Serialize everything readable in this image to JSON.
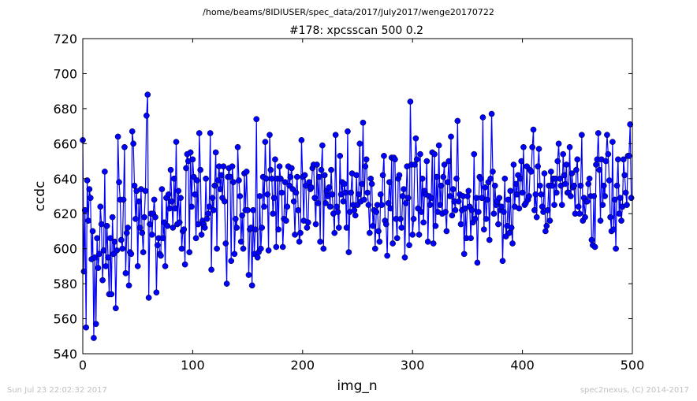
{
  "header": {
    "path": "/home/beams/8IDIUSER/spec_data/2017/July2017/wenge20170722",
    "scan_title": "#178: xpcsscan 500 0.2"
  },
  "footer": {
    "timestamp": "Sun Jul 23 22:02:32 2017",
    "credit": "spec2nexus, (C) 2014-2017"
  },
  "chart_data": {
    "type": "line",
    "title": "#178: xpcsscan 500 0.2",
    "xlabel": "img_n",
    "ylabel": "ccdc",
    "xlim": [
      0,
      500
    ],
    "ylim": [
      540,
      720
    ],
    "x_ticks": [
      0,
      100,
      200,
      300,
      400,
      500
    ],
    "y_ticks": [
      540,
      560,
      580,
      600,
      620,
      640,
      660,
      680,
      700,
      720
    ],
    "grid": false,
    "marker": "circle",
    "color": "#0000ff",
    "series": [
      {
        "x_start": 0,
        "x_step": 1,
        "values": [
          662,
          587,
          622,
          555,
          639,
          616,
          634,
          629,
          594,
          610,
          549,
          595,
          557,
          606,
          589,
          597,
          624,
          614,
          582,
          599,
          644,
          590,
          613,
          595,
          574,
          606,
          574,
          618,
          597,
          604,
          566,
          599,
          664,
          638,
          628,
          605,
          600,
          628,
          658,
          586,
          609,
          612,
          579,
          598,
          597,
          667,
          660,
          636,
          617,
          633,
          590,
          627,
          612,
          634,
          609,
          598,
          618,
          633,
          676,
          688,
          572,
          614,
          620,
          608,
          620,
          628,
          618,
          575,
          602,
          606,
          597,
          596,
          634,
          606,
          615,
          590,
          629,
          613,
          631,
          623,
          645,
          627,
          612,
          640,
          623,
          661,
          614,
          633,
          615,
          629,
          600,
          610,
          611,
          591,
          646,
          654,
          650,
          598,
          655,
          624,
          651,
          641,
          631,
          606,
          639,
          614,
          666,
          645,
          608,
          616,
          614,
          612,
          640,
          617,
          620,
          624,
          666,
          588,
          629,
          622,
          636,
          655,
          600,
          639,
          647,
          634,
          642,
          629,
          647,
          627,
          603,
          580,
          641,
          646,
          641,
          593,
          647,
          638,
          597,
          617,
          612,
          658,
          639,
          630,
          604,
          619,
          600,
          643,
          622,
          644,
          622,
          585,
          611,
          612,
          579,
          622,
          597,
          611,
          674,
          595,
          598,
          630,
          600,
          612,
          641,
          624,
          661,
          640,
          631,
          599,
          665,
          645,
          640,
          620,
          629,
          651,
          601,
          640,
          611,
          647,
          640,
          632,
          601,
          617,
          638,
          616,
          624,
          647,
          636,
          641,
          646,
          634,
          627,
          608,
          632,
          641,
          622,
          604,
          609,
          662,
          641,
          616,
          642,
          636,
          612,
          615,
          638,
          634,
          635,
          646,
          648,
          629,
          614,
          648,
          626,
          641,
          604,
          645,
          659,
          600,
          642,
          626,
          633,
          630,
          635,
          624,
          645,
          631,
          620,
          609,
          665,
          624,
          621,
          612,
          653,
          631,
          638,
          627,
          637,
          632,
          612,
          667,
          598,
          621,
          632,
          643,
          625,
          622,
          619,
          642,
          625,
          631,
          660,
          627,
          637,
          672,
          628,
          647,
          651,
          632,
          625,
          609,
          640,
          637,
          613,
          622,
          600,
          621,
          625,
          610,
          604,
          631,
          625,
          642,
          653,
          616,
          614,
          596,
          626,
          638,
          623,
          652,
          603,
          652,
          651,
          617,
          606,
          640,
          642,
          617,
          612,
          630,
          634,
          595,
          626,
          647,
          629,
          602,
          684,
          648,
          608,
          617,
          648,
          663,
          651,
          623,
          608,
          654,
          621,
          640,
          615,
          633,
          631,
          650,
          604,
          630,
          625,
          629,
          655,
          603,
          654,
          613,
          641,
          621,
          659,
          625,
          636,
          620,
          641,
          648,
          621,
          610,
          638,
          650,
          630,
          664,
          619,
          634,
          627,
          622,
          640,
          673,
          627,
          631,
          614,
          622,
          630,
          597,
          623,
          606,
          630,
          633,
          624,
          606,
          622,
          615,
          654,
          617,
          629,
          592,
          621,
          641,
          640,
          629,
          675,
          611,
          635,
          617,
          628,
          638,
          605,
          640,
          677,
          644,
          620,
          636,
          625,
          627,
          614,
          629,
          622,
          624,
          593,
          621,
          640,
          607,
          613,
          628,
          609,
          633,
          612,
          603,
          648,
          624,
          637,
          631,
          642,
          623,
          640,
          650,
          632,
          658,
          625,
          626,
          647,
          628,
          630,
          645,
          644,
          658,
          668,
          622,
          631,
          618,
          647,
          657,
          636,
          631,
          624,
          621,
          643,
          610,
          613,
          622,
          636,
          616,
          644,
          636,
          640,
          625,
          640,
          632,
          650,
          660,
          640,
          636,
          625,
          654,
          642,
          637,
          648,
          632,
          632,
          658,
          630,
          643,
          635,
          636,
          620,
          645,
          651,
          624,
          620,
          636,
          665,
          616,
          629,
          618,
          627,
          627,
          637,
          640,
          630,
          605,
          602,
          630,
          601,
          648,
          651,
          666,
          645,
          616,
          651,
          625,
          636,
          630,
          650,
          665,
          654,
          639,
          618,
          610,
          661,
          611,
          628,
          600,
          636,
          651,
          620,
          629,
          616,
          624,
          651,
          642,
          632,
          625,
          653,
          653,
          671,
          629
        ]
      }
    ]
  }
}
